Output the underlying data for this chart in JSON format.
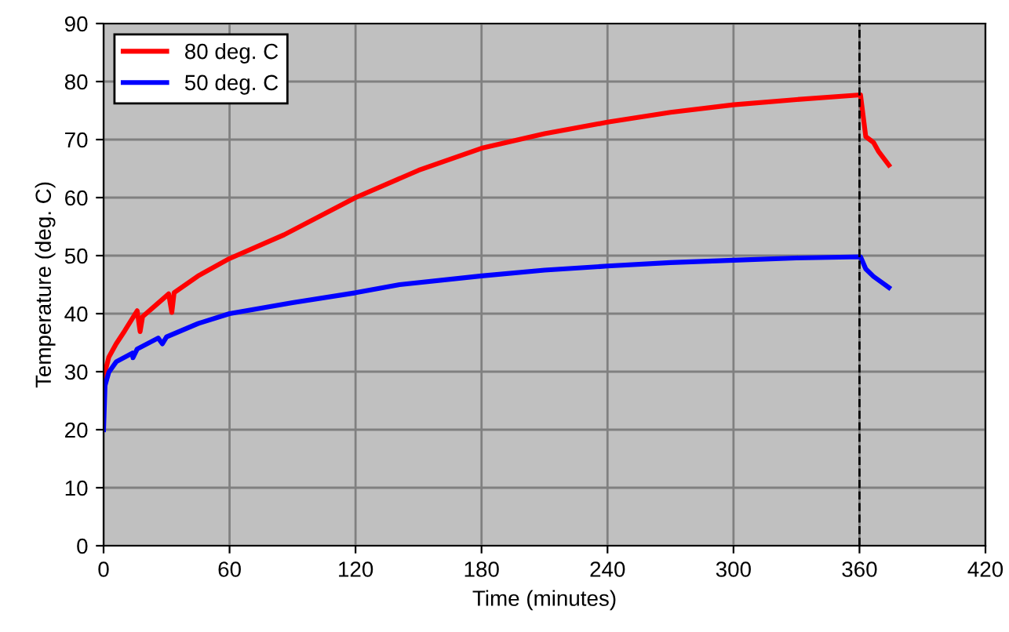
{
  "chart_data": {
    "type": "line",
    "xlabel": "Time (minutes)",
    "ylabel": "Temperature (deg. C)",
    "xlim": [
      0,
      420
    ],
    "xticks": [
      0,
      60,
      120,
      180,
      240,
      300,
      360,
      420
    ],
    "ylim": [
      0,
      90
    ],
    "yticks": [
      0,
      10,
      20,
      30,
      40,
      50,
      60,
      70,
      80,
      90
    ],
    "grid": true,
    "legend": "top left",
    "marker": "none",
    "line_style": "solid",
    "ref_lines": [
      {
        "axis": "x",
        "value": 360,
        "color": "#000000",
        "line_style": "dashed"
      }
    ],
    "series": [
      {
        "name": "80 deg. C",
        "color": "#ff0000",
        "x": [
          0,
          2.5,
          6,
          10,
          16,
          17.4,
          18.6,
          25,
          31,
          32.5,
          33.6,
          45,
          60,
          86,
          120,
          150,
          180,
          210,
          240,
          270,
          300,
          330,
          360.5,
          363,
          366.7,
          369,
          374
        ],
        "values": [
          28.9,
          32.5,
          34.8,
          37,
          40.5,
          36.9,
          39.5,
          41.5,
          43.4,
          40.2,
          43.6,
          46.5,
          49.5,
          53.6,
          60,
          64.7,
          68.5,
          71,
          73,
          74.7,
          76,
          76.9,
          77.7,
          70.5,
          69.5,
          68,
          65.6
        ]
      },
      {
        "name": "50 deg. C",
        "color": "#0000ff",
        "x": [
          0,
          0.7,
          2.5,
          6,
          13.7,
          14,
          16,
          26,
          28,
          30,
          45,
          60,
          90,
          120,
          141,
          180,
          210,
          240,
          270,
          300,
          330,
          360.5,
          363,
          366.7,
          374
        ],
        "values": [
          20,
          27.6,
          29.9,
          31.7,
          33.2,
          32.4,
          33.9,
          35.8,
          34.8,
          36,
          38.3,
          40,
          41.9,
          43.6,
          45,
          46.5,
          47.5,
          48.2,
          48.8,
          49.2,
          49.6,
          49.8,
          47.7,
          46.4,
          44.5
        ]
      }
    ]
  }
}
